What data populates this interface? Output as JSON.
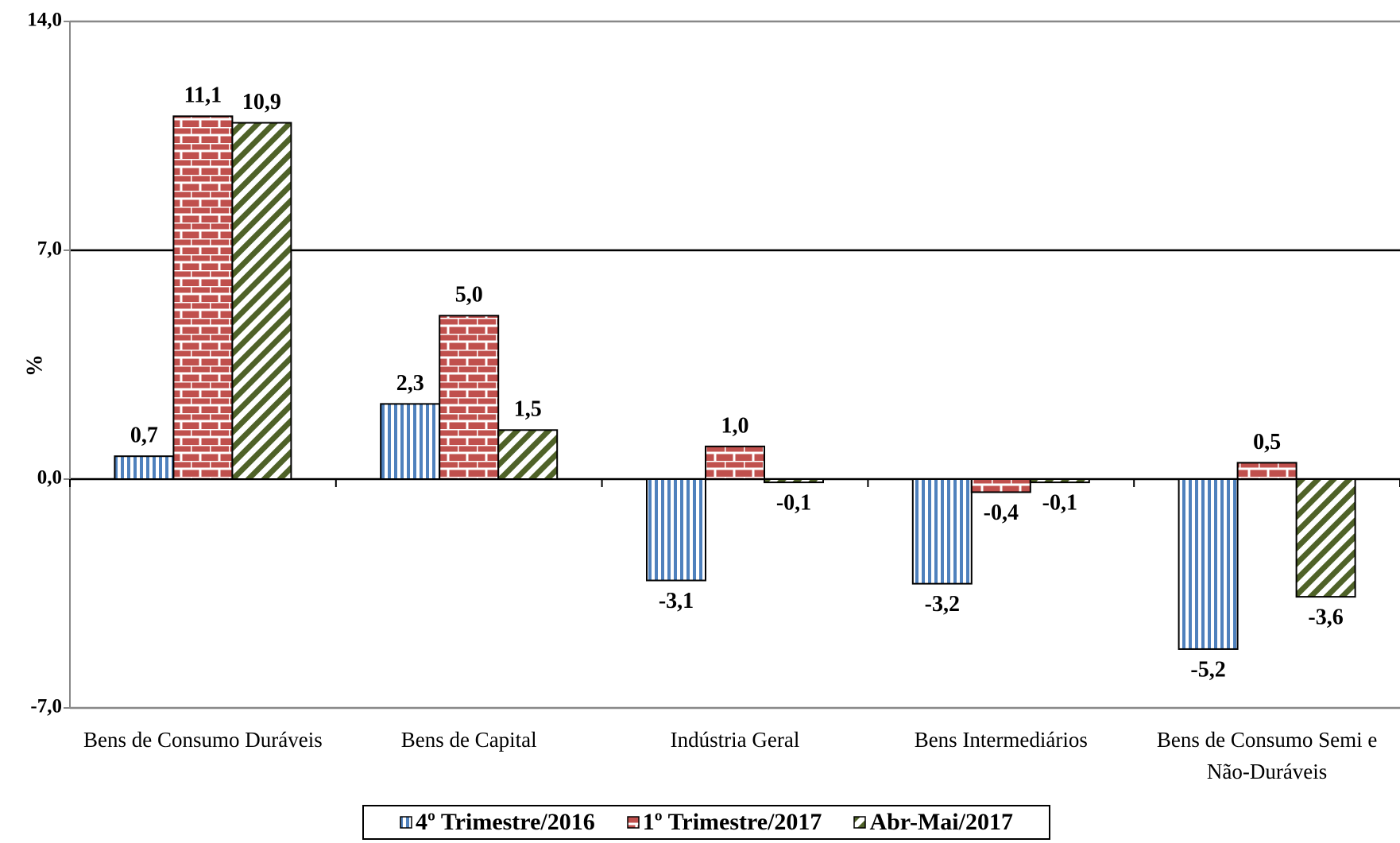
{
  "chart_data": {
    "type": "bar",
    "y_label": "%",
    "categories": [
      "Bens de Consumo Duráveis",
      "Bens de Capital",
      "Indústria Geral",
      "Bens Intermediários",
      "Bens de Consumo Semi e Não-Duráveis"
    ],
    "series": [
      {
        "name": "4º Trimestre/2016",
        "color": "#4f81bd",
        "values": [
          0.7,
          2.3,
          -3.1,
          -3.2,
          -5.2
        ],
        "value_labels": [
          "0,7",
          "2,3",
          "-3,1",
          "-3,2",
          "-5,2"
        ]
      },
      {
        "name": "1º Trimestre/2017",
        "color": "#c0504d",
        "values": [
          11.1,
          5.0,
          1.0,
          -0.4,
          0.5
        ],
        "value_labels": [
          "11,1",
          "5,0",
          "1,0",
          "-0,4",
          "0,5"
        ]
      },
      {
        "name": "Abr-Mai/2017",
        "color": "#4f6228",
        "values": [
          10.9,
          1.5,
          -0.1,
          -0.1,
          -3.6
        ],
        "value_labels": [
          "10,9",
          "1,5",
          "-0,1",
          "-0,1",
          "-3,6"
        ]
      }
    ],
    "ylim": [
      -7,
      14
    ],
    "yticks": [
      {
        "value": -7,
        "label": "-7,0"
      },
      {
        "value": 0,
        "label": "0,0"
      },
      {
        "value": 7,
        "label": "7,0"
      },
      {
        "value": 14,
        "label": "14,0"
      }
    ],
    "grid": true,
    "legend": "bottom"
  }
}
